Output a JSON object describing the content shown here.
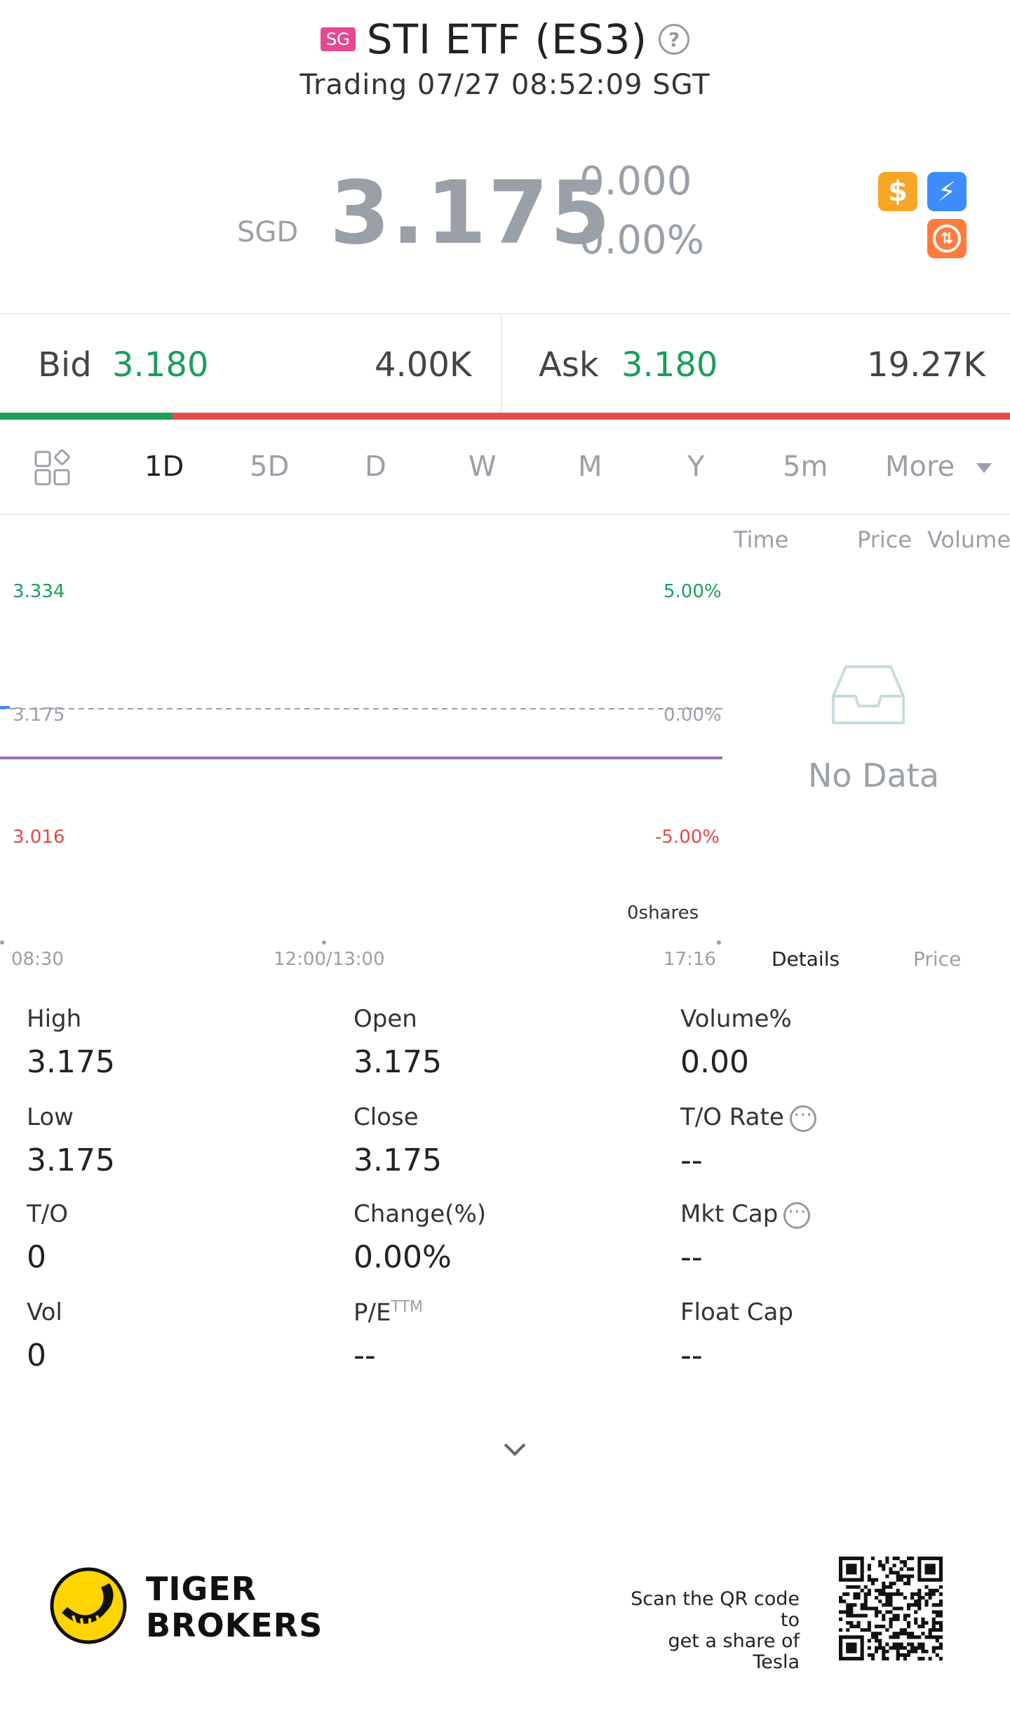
{
  "header": {
    "market_badge": "SG",
    "title": "STI ETF (ES3)",
    "status": "Trading 07/27 08:52:09 SGT"
  },
  "quote": {
    "currency": "SGD",
    "price": "3.175",
    "change": "0.000",
    "change_pct": "0.00%",
    "icons": [
      "dollar-icon",
      "lightning-icon",
      "swap-icon"
    ]
  },
  "orderbook": {
    "bid_label": "Bid",
    "bid_price": "3.180",
    "bid_size": "4.00K",
    "ask_label": "Ask",
    "ask_price": "3.180",
    "ask_size": "19.27K",
    "bid_share": 0.171
  },
  "tabs": {
    "items": [
      "1D",
      "5D",
      "D",
      "W",
      "M",
      "Y",
      "5m",
      "More"
    ],
    "active": "1D"
  },
  "chart_data": {
    "type": "line",
    "y_labels": {
      "top": "3.334",
      "mid": "3.175",
      "bottom": "3.016"
    },
    "pct_labels": {
      "top": "5.00%",
      "mid": "0.00%",
      "bottom": "-5.00%"
    },
    "x_labels": [
      "08:30",
      "12:00/13:00",
      "17:16"
    ],
    "volume_label": "0shares",
    "series": [
      {
        "values": [
          3.175,
          3.175
        ]
      }
    ],
    "ylim": [
      3.016,
      3.334
    ],
    "colors": {
      "up": "#1a9e5c",
      "down": "#e04a4a",
      "line": "#9b6fb0"
    }
  },
  "side_panel": {
    "headers": [
      "Time",
      "Price",
      "Volume"
    ],
    "empty_text": "No Data",
    "tabs": [
      "Details",
      "Price"
    ]
  },
  "stats": {
    "high_label": "High",
    "high": "3.175",
    "open_label": "Open",
    "open": "3.175",
    "volpct_label": "Volume%",
    "volpct": "0.00",
    "low_label": "Low",
    "low": "3.175",
    "close_label": "Close",
    "close": "3.175",
    "torate_label": "T/O Rate",
    "torate": "--",
    "to_label": "T/O",
    "to": "0",
    "change_label": "Change(%)",
    "change": "0.00%",
    "mktcap_label": "Mkt Cap",
    "mktcap": "--",
    "vol_label": "Vol",
    "vol": "0",
    "pe_label": "P/E",
    "pe_sup": "TTM",
    "pe": "--",
    "floatcap_label": "Float Cap",
    "floatcap": "--"
  },
  "footer": {
    "brand_line1": "TIGER",
    "brand_line2": "BROKERS",
    "qr_line1": "Scan the QR code to",
    "qr_line2": "get a share of Tesla"
  }
}
